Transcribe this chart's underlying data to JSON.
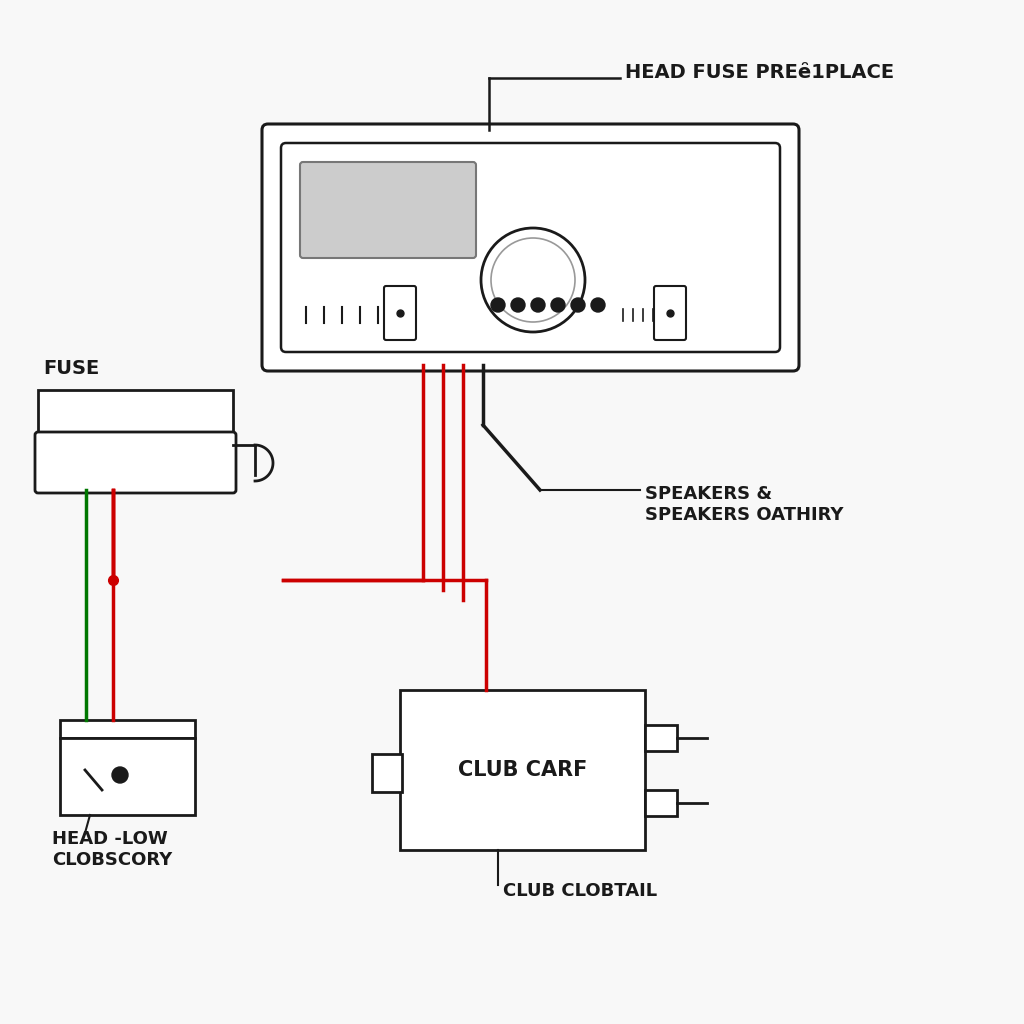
{
  "bg_color": "#f8f8f8",
  "line_color": "#1a1a1a",
  "red_wire": "#cc0000",
  "green_wire": "#007700",
  "labels": {
    "head_fuse": "HEAD FUSE PREȇ1PLACE",
    "fuse": "FUSE",
    "speakers": "SPEAKERS &\nSPEAKERS OATHIRY",
    "head_low": "HEAD -LOW\nCLOBSCORY",
    "club_car": "CLUB CARF",
    "club_tail": "CLUB CLOBTAIL"
  },
  "font_size": 12
}
